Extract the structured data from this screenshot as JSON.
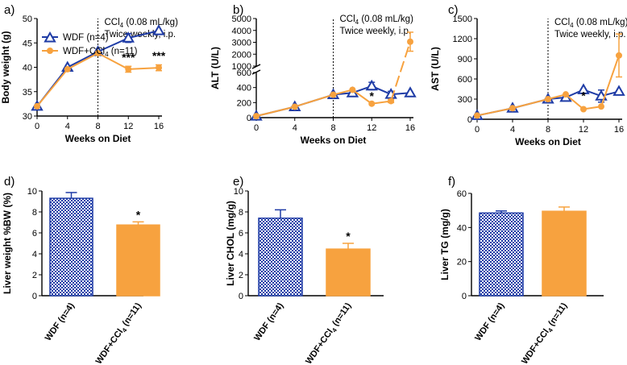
{
  "colors": {
    "wdf": "#1f3ca6",
    "ccl4": "#f7a23f",
    "axis": "#000000"
  },
  "annotation": {
    "line1": "CCl4 (0.08 mL/kg)",
    "line2": "Twice weekly, i.p."
  },
  "chart_data": [
    {
      "panel": "a)",
      "type": "line",
      "title": "",
      "xlabel": "Weeks on Diet",
      "ylabel": "Body weight (g)",
      "xlim": [
        0,
        16
      ],
      "ylim": [
        30,
        50
      ],
      "xticks": [
        "0",
        "4",
        "8",
        "12",
        "16"
      ],
      "yticks": [
        "30",
        "35",
        "40",
        "45",
        "50"
      ],
      "legend": {
        "placement": "top-left",
        "entries": [
          "WDF (n=4)",
          "WDF+CCl4 (n=11)"
        ]
      },
      "series": [
        {
          "name": "WDF (n=4)",
          "x": [
            0,
            4,
            8,
            12,
            16
          ],
          "values": [
            32,
            40,
            43.2,
            46,
            47.5
          ],
          "errors": [
            0,
            0,
            0,
            0.9,
            0
          ]
        },
        {
          "name": "WDF+CCl4 (n=11)",
          "x": [
            0,
            4,
            8,
            12,
            16
          ],
          "values": [
            32,
            39.6,
            42.9,
            39.6,
            39.9
          ],
          "errors": [
            0,
            0,
            0,
            0.6,
            0.6
          ]
        }
      ],
      "significance": [
        {
          "x": 12,
          "label": "***"
        },
        {
          "x": 16,
          "label": "***"
        }
      ],
      "vline": 8
    },
    {
      "panel": "b)",
      "type": "line",
      "title": "",
      "xlabel": "Weeks on Diet",
      "ylabel": "ALT (U/L)",
      "xlim": [
        0,
        16
      ],
      "lower_range": [
        0,
        600
      ],
      "upper_range": [
        1000,
        5000
      ],
      "xticks": [
        "0",
        "4",
        "8",
        "12",
        "16"
      ],
      "yticks_lower": [
        "0",
        "200",
        "400",
        "600"
      ],
      "yticks_upper": [
        "1000",
        "2000",
        "3000",
        "4000",
        "5000"
      ],
      "series": [
        {
          "name": "WDF (n=4)",
          "x": [
            0,
            4,
            8,
            10,
            12,
            14,
            16
          ],
          "values": [
            20,
            145,
            305,
            330,
            420,
            310,
            330
          ],
          "errors": [
            0,
            0,
            0,
            0,
            50,
            40,
            0
          ]
        },
        {
          "name": "WDF+CCl4 (n=11)",
          "x": [
            0,
            4,
            8,
            10,
            12,
            14,
            16
          ],
          "values": [
            20,
            145,
            305,
            370,
            185,
            220,
            3050
          ],
          "errors": [
            0,
            0,
            0,
            0,
            0,
            20,
            800
          ]
        }
      ],
      "significance": [
        {
          "x": 12,
          "label": "*"
        }
      ],
      "vline": 8
    },
    {
      "panel": "c)",
      "type": "line",
      "title": "",
      "xlabel": "Weeks on Diet",
      "ylabel": "AST (U/L)",
      "xlim": [
        0,
        16
      ],
      "ylim": [
        0,
        1500
      ],
      "xticks": [
        "0",
        "4",
        "8",
        "12",
        "16"
      ],
      "yticks": [
        "0",
        "300",
        "600",
        "900",
        "1200",
        "1500"
      ],
      "series": [
        {
          "name": "WDF (n=4)",
          "x": [
            0,
            4,
            8,
            10,
            12,
            14,
            16
          ],
          "values": [
            55,
            165,
            300,
            325,
            440,
            345,
            415
          ],
          "errors": [
            0,
            0,
            0,
            0,
            0,
            90,
            0
          ]
        },
        {
          "name": "WDF+CCl4 (n=11)",
          "x": [
            0,
            4,
            8,
            10,
            12,
            14,
            16
          ],
          "values": [
            55,
            165,
            300,
            370,
            150,
            190,
            950
          ],
          "errors": [
            0,
            0,
            0,
            0,
            0,
            0,
            320
          ]
        }
      ],
      "significance": [
        {
          "x": 12,
          "label": "*"
        }
      ],
      "vline": 8
    },
    {
      "panel": "d)",
      "type": "bar",
      "ylabel": "Liver weight %BW (%)",
      "ylim": [
        0,
        10
      ],
      "yticks": [
        "0",
        "2",
        "4",
        "6",
        "8",
        "10"
      ],
      "categories": [
        "WDF (n=4)",
        "WDF+CCl4 (n=11)"
      ],
      "values": [
        9.3,
        6.75
      ],
      "errors": [
        0.55,
        0.3
      ],
      "significance": [
        "",
        "*"
      ]
    },
    {
      "panel": "e)",
      "type": "bar",
      "ylabel": "Liver CHOL (mg/g)",
      "ylim": [
        0,
        10
      ],
      "yticks": [
        "0",
        "2",
        "4",
        "6",
        "8",
        "10"
      ],
      "categories": [
        "WDF (n=4)",
        "WDF+CCl4 (n=11)"
      ],
      "values": [
        7.4,
        4.45
      ],
      "errors": [
        0.8,
        0.55
      ],
      "significance": [
        "",
        "*"
      ]
    },
    {
      "panel": "f)",
      "type": "bar",
      "ylabel": "Liver TG (mg/g)",
      "ylim": [
        0,
        60
      ],
      "yticks": [
        "0",
        "20",
        "40",
        "60"
      ],
      "categories": [
        "WDF (n=4)",
        "WDF+CCl4 (n=11)"
      ],
      "values": [
        48.5,
        49.5
      ],
      "errors": [
        1.2,
        2.5
      ],
      "significance": [
        "",
        ""
      ]
    }
  ]
}
